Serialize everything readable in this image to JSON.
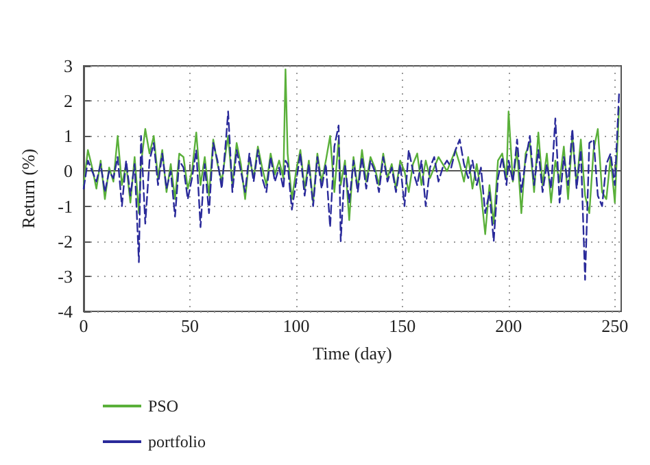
{
  "chart_data": {
    "type": "line",
    "xlabel": "Time (day)",
    "ylabel": "Return (%)",
    "xlim": [
      0,
      253
    ],
    "xticks": [
      0,
      50,
      100,
      150,
      200,
      250
    ],
    "ylim": [
      -4,
      3
    ],
    "yticks": [
      -4,
      -3,
      -2,
      -1,
      0,
      1,
      2,
      3
    ],
    "grid": true,
    "legend": "bottom left",
    "marker": "none",
    "series": [
      {
        "name": "PSO",
        "color": "#5ab03a",
        "line_style": "solid",
        "x": [
          0,
          2,
          4,
          6,
          8,
          10,
          12,
          14,
          16,
          18,
          20,
          22,
          24,
          26,
          27,
          29,
          31,
          33,
          35,
          37,
          39,
          41,
          43,
          45,
          47,
          49,
          51,
          53,
          55,
          57,
          59,
          61,
          63,
          65,
          67,
          68,
          70,
          72,
          74,
          76,
          78,
          80,
          82,
          84,
          86,
          88,
          90,
          92,
          94,
          95,
          96,
          98,
          100,
          102,
          104,
          106,
          108,
          110,
          112,
          114,
          116,
          118,
          120,
          121,
          123,
          125,
          127,
          129,
          131,
          133,
          135,
          137,
          139,
          141,
          143,
          145,
          147,
          149,
          151,
          153,
          155,
          157,
          159,
          161,
          163,
          165,
          167,
          169,
          171,
          173,
          175,
          177,
          179,
          181,
          183,
          185,
          187,
          189,
          191,
          193,
          195,
          197,
          199,
          200,
          202,
          204,
          206,
          208,
          210,
          212,
          214,
          216,
          218,
          220,
          222,
          224,
          226,
          228,
          230,
          232,
          234,
          236,
          238,
          240,
          242,
          244,
          246,
          248,
          250,
          252
        ],
        "values": [
          -0.4,
          0.6,
          0.1,
          -0.5,
          0.3,
          -0.8,
          0.1,
          -0.3,
          1.0,
          -0.4,
          0.2,
          -0.9,
          0.4,
          -1.2,
          0.2,
          1.2,
          0.5,
          1.0,
          -0.2,
          0.6,
          -0.6,
          0.2,
          -0.8,
          0.5,
          0.4,
          -0.5,
          0.0,
          1.1,
          -0.4,
          0.4,
          -0.7,
          0.9,
          0.2,
          -0.3,
          0.6,
          1.0,
          -0.4,
          0.8,
          0.2,
          -0.8,
          0.4,
          -0.2,
          0.7,
          0.1,
          -0.4,
          0.5,
          -0.1,
          0.3,
          -0.2,
          2.9,
          0.5,
          -0.8,
          0.0,
          0.6,
          -0.5,
          0.3,
          -0.9,
          0.5,
          -0.3,
          0.3,
          1.0,
          -0.6,
          0.9,
          -0.4,
          0.3,
          -1.4,
          0.4,
          -0.5,
          0.6,
          -0.3,
          0.4,
          0.1,
          -0.4,
          0.5,
          -0.2,
          0.2,
          -0.5,
          0.3,
          0.0,
          -0.6,
          0.2,
          0.5,
          -0.4,
          0.3,
          -0.2,
          0.1,
          0.4,
          0.2,
          0.0,
          0.3,
          0.6,
          0.2,
          -0.3,
          0.4,
          -0.5,
          0.2,
          -0.6,
          -1.8,
          -0.4,
          -1.5,
          0.3,
          0.5,
          -0.2,
          1.7,
          -0.3,
          0.6,
          -1.2,
          0.5,
          0.8,
          -0.6,
          1.1,
          -0.4,
          0.5,
          -0.9,
          0.3,
          -0.3,
          0.7,
          -0.8,
          1.0,
          -0.4,
          0.9,
          -0.7,
          -1.2,
          0.6,
          1.2,
          -0.6,
          -0.8,
          0.4,
          -0.9,
          1.8
        ]
      },
      {
        "name": "portfolio",
        "color": "#2a2a9a",
        "line_style": "dashed",
        "x": [
          0,
          2,
          4,
          6,
          8,
          10,
          12,
          14,
          16,
          18,
          20,
          22,
          24,
          26,
          27,
          29,
          31,
          33,
          35,
          37,
          39,
          41,
          43,
          45,
          47,
          49,
          51,
          53,
          55,
          57,
          59,
          61,
          63,
          65,
          67,
          68,
          70,
          72,
          74,
          76,
          78,
          80,
          82,
          84,
          86,
          88,
          90,
          92,
          94,
          95,
          96,
          98,
          100,
          102,
          104,
          106,
          108,
          110,
          112,
          114,
          116,
          118,
          120,
          121,
          123,
          125,
          127,
          129,
          131,
          133,
          135,
          137,
          139,
          141,
          143,
          145,
          147,
          149,
          151,
          153,
          155,
          157,
          159,
          161,
          163,
          165,
          167,
          169,
          171,
          173,
          175,
          177,
          179,
          181,
          183,
          185,
          187,
          189,
          191,
          193,
          195,
          197,
          199,
          200,
          202,
          204,
          206,
          208,
          210,
          212,
          214,
          216,
          218,
          220,
          222,
          224,
          226,
          228,
          230,
          232,
          234,
          236,
          238,
          240,
          242,
          244,
          246,
          248,
          250,
          252
        ],
        "values": [
          -0.5,
          0.3,
          0.0,
          -0.3,
          0.2,
          -0.6,
          0.0,
          -0.2,
          0.4,
          -1.0,
          0.3,
          -0.7,
          0.2,
          -2.6,
          1.0,
          -1.5,
          0.3,
          0.8,
          -0.4,
          0.5,
          -0.5,
          0.0,
          -1.3,
          0.3,
          0.1,
          -0.8,
          -0.2,
          0.6,
          -1.6,
          0.2,
          -1.2,
          0.8,
          0.3,
          -0.5,
          0.9,
          1.7,
          -0.6,
          0.6,
          0.0,
          -0.6,
          0.5,
          -0.3,
          0.6,
          -0.2,
          -0.6,
          0.4,
          -0.3,
          0.1,
          -0.5,
          0.3,
          0.2,
          -1.1,
          -0.3,
          0.5,
          -0.7,
          0.2,
          -1.0,
          0.4,
          -0.5,
          0.2,
          -1.6,
          0.7,
          1.3,
          -2.0,
          0.2,
          -0.9,
          0.3,
          -0.6,
          0.4,
          -0.5,
          0.3,
          0.0,
          -0.6,
          0.4,
          -0.3,
          0.1,
          -0.6,
          0.2,
          -1.0,
          0.6,
          0.0,
          -0.4,
          0.3,
          -1.0,
          0.1,
          0.4,
          -0.3,
          0.1,
          0.3,
          0.1,
          0.6,
          0.9,
          0.2,
          -0.2,
          0.3,
          -0.4,
          0.1,
          -1.2,
          -0.6,
          -2.0,
          -0.2,
          0.4,
          -0.4,
          0.3,
          -0.3,
          0.9,
          -0.6,
          0.3,
          1.0,
          -0.4,
          0.6,
          -0.6,
          0.2,
          -0.5,
          1.5,
          -0.9,
          0.4,
          -0.4,
          1.2,
          -0.5,
          0.6,
          -3.1,
          0.8,
          0.9,
          -0.7,
          -1.0,
          0.2,
          0.5,
          -0.4,
          2.2
        ]
      }
    ]
  }
}
